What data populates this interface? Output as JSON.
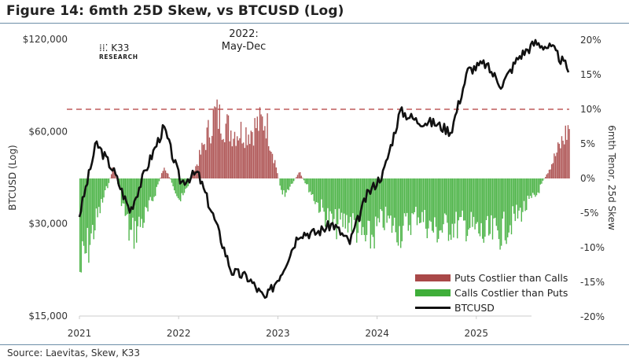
{
  "title": "Figure 14: 6mth 25D Skew, vs BTCUSD (Log)",
  "source": "Source: Laevitas, Skew, K33",
  "logo": {
    "mark": "⁞⁞⁚ K33",
    "brand": "K33",
    "sub": "RESEARCH"
  },
  "annotation": {
    "line1": "2022:",
    "line2": "May-Dec"
  },
  "legend": [
    {
      "label": "Puts Costlier than Calls",
      "color": "#a94848"
    },
    {
      "label": "Calls Costlier than Puts",
      "color": "#3fae3a"
    },
    {
      "label": "BTCUSD",
      "color": "#111111"
    }
  ],
  "axes": {
    "left_label": "BTCUSD (Log)",
    "right_label": "6mth Tenor, 25d Skew",
    "left_ticks": [
      "$120,000",
      "$60,000",
      "$30,000",
      "$15,000"
    ],
    "right_ticks": [
      "20%",
      "15%",
      "10%",
      "5%",
      "0%",
      "-5%",
      "-10%",
      "-15%",
      "-20%"
    ],
    "x_ticks": [
      "2021",
      "2022",
      "2023",
      "2024",
      "2025"
    ]
  },
  "chart_data": {
    "type": "bar+line",
    "title": "Figure 14: 6mth 25D Skew, vs BTCUSD (Log)",
    "xlabel": "",
    "ylabel_left": "BTCUSD (Log)",
    "ylabel_right": "6mth Tenor, 25d Skew",
    "ylim_left": [
      15000,
      120000
    ],
    "ylim_right": [
      -20,
      20
    ],
    "reference_line": {
      "axis": "right",
      "value": 10,
      "style": "dashed",
      "color": "#b23a3a"
    },
    "x": [
      "2021-01",
      "2021-03",
      "2021-05",
      "2021-07",
      "2021-09",
      "2021-11",
      "2022-01",
      "2022-03",
      "2022-05",
      "2022-07",
      "2022-09",
      "2022-11",
      "2023-01",
      "2023-03",
      "2023-05",
      "2023-07",
      "2023-09",
      "2023-11",
      "2024-01",
      "2024-03",
      "2024-05",
      "2024-07",
      "2024-09",
      "2024-11",
      "2025-01",
      "2025-03",
      "2025-05",
      "2025-07",
      "2025-09",
      "2025-11"
    ],
    "series": [
      {
        "name": "BTCUSD",
        "axis": "left",
        "type": "line",
        "values": [
          32000,
          55000,
          45000,
          33000,
          46000,
          62000,
          41000,
          44000,
          31000,
          21000,
          20000,
          17000,
          21000,
          28000,
          28000,
          30000,
          26000,
          37000,
          44000,
          70000,
          65000,
          64000,
          60000,
          95000,
          100000,
          85000,
          105000,
          117000,
          112000,
          95000
        ]
      },
      {
        "name": "6mth 25d Skew (%)",
        "axis": "right",
        "type": "bar",
        "values": [
          -16,
          -7,
          2,
          -10,
          -6,
          2,
          -4,
          3,
          11,
          8,
          8,
          10,
          -3,
          1,
          -4,
          -8,
          -7,
          -11,
          -7,
          -9,
          -6,
          -9,
          -8,
          -8,
          -10,
          -9,
          -6,
          -3,
          3,
          9
        ]
      }
    ]
  }
}
